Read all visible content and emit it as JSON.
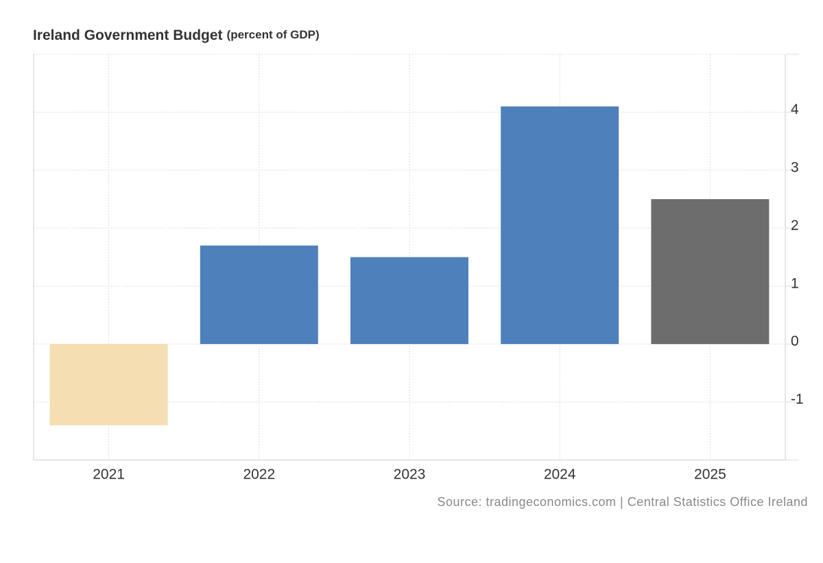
{
  "chart_data": {
    "type": "bar",
    "title": "Ireland Government Budget",
    "subtitle": "(percent of GDP)",
    "categories": [
      "2021",
      "2022",
      "2023",
      "2024",
      "2025"
    ],
    "values": [
      -1.4,
      1.7,
      1.5,
      4.1,
      2.5
    ],
    "colors": [
      "#f4deb2",
      "#4e80bb",
      "#4e80bb",
      "#4e80bb",
      "#6d6d6d"
    ],
    "ylim": [
      -2,
      5
    ],
    "yticks": [
      -1,
      0,
      1,
      2,
      3,
      4
    ],
    "grid": true,
    "source": "Source: tradingeconomics.com | Central Statistics Office Ireland"
  }
}
